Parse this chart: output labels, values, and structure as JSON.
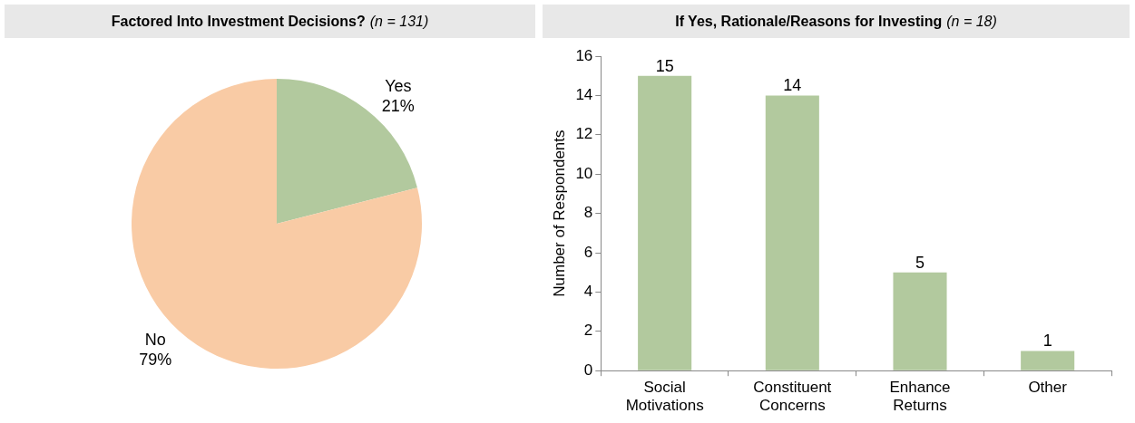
{
  "chart_data": [
    {
      "type": "pie",
      "title": "Factored Into Investment Decisions?",
      "subtitle": "(n = 131)",
      "categories": [
        "Yes",
        "No"
      ],
      "values": [
        21,
        79
      ],
      "colors": [
        "#b2c99e",
        "#f9cba5"
      ],
      "value_labels": [
        "21%",
        "79%"
      ],
      "legend": false
    },
    {
      "type": "bar",
      "title": "If Yes, Rationale/Reasons for Investing",
      "subtitle": "(n = 18)",
      "categories": [
        "Social Motivations",
        "Constituent Concerns",
        "Enhance Returns",
        "Other"
      ],
      "values": [
        15,
        14,
        5,
        1
      ],
      "color": "#b2c99e",
      "ylabel": "Number of Respondents",
      "ylim": [
        0,
        16
      ],
      "yticks": [
        0,
        2,
        4,
        6,
        8,
        10,
        12,
        14,
        16
      ],
      "data_labels": true,
      "grid": false,
      "legend": false
    }
  ]
}
